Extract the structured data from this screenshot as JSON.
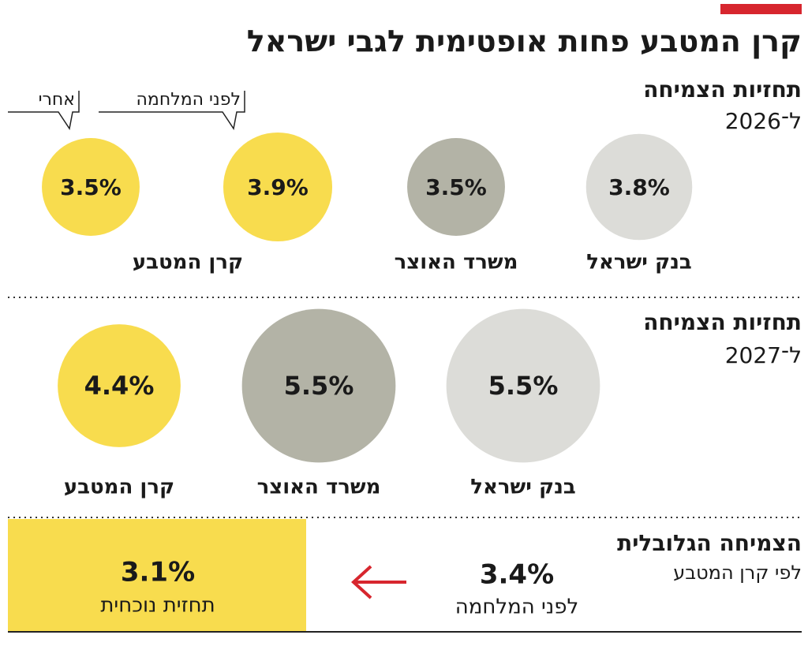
{
  "chart_data": {
    "type": "bubble",
    "title": "קרן המטבע פחות אופטימית לגבי ישראל",
    "annotations": [
      "לפני המלחמה",
      "אחרי"
    ],
    "groups": [
      {
        "title": "תחזיות הצמיחה",
        "subtitle": "ל־2026",
        "items": [
          {
            "name": "בנק ישראל",
            "color": "#dcdcd8",
            "values": [
              3.8
            ],
            "value_labels": [
              "3.8%"
            ]
          },
          {
            "name": "משרד האוצר",
            "color": "#b3b3a6",
            "values": [
              3.5
            ],
            "value_labels": [
              "3.5%"
            ]
          },
          {
            "name": "קרן המטבע",
            "color": "#f8dc4e",
            "values": [
              3.9,
              3.5
            ],
            "value_labels": [
              "3.9%",
              "3.5%"
            ]
          }
        ]
      },
      {
        "title": "תחזיות הצמיחה",
        "subtitle": "ל־2027",
        "items": [
          {
            "name": "בנק ישראל",
            "color": "#dcdcd8",
            "values": [
              5.5
            ],
            "value_labels": [
              "5.5%"
            ]
          },
          {
            "name": "משרד האוצר",
            "color": "#b3b3a6",
            "values": [
              5.5
            ],
            "value_labels": [
              "5.5%"
            ]
          },
          {
            "name": "קרן המטבע",
            "color": "#f8dc4e",
            "values": [
              4.4
            ],
            "value_labels": [
              "4.4%"
            ]
          }
        ]
      }
    ],
    "global": {
      "title": "הצמיחה הגלובלית",
      "subtitle": "לפי קרן המטבע",
      "before": {
        "value": 3.4,
        "value_label": "3.4%",
        "label": "לפני המלחמה"
      },
      "current": {
        "value": 3.1,
        "value_label": "3.1%",
        "label": "תחזית נוכחית"
      }
    }
  }
}
